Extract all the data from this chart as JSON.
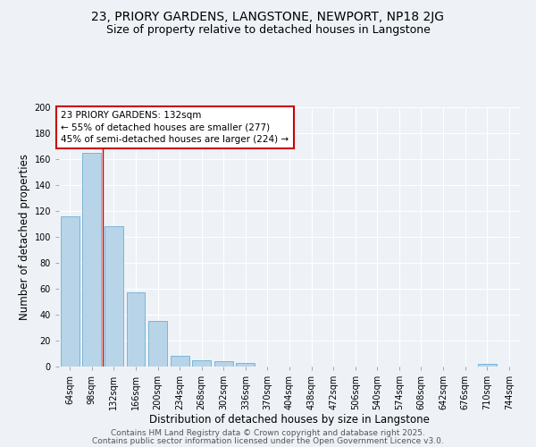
{
  "title_line1": "23, PRIORY GARDENS, LANGSTONE, NEWPORT, NP18 2JG",
  "title_line2": "Size of property relative to detached houses in Langstone",
  "xlabel": "Distribution of detached houses by size in Langstone",
  "ylabel": "Number of detached properties",
  "categories": [
    "64sqm",
    "98sqm",
    "132sqm",
    "166sqm",
    "200sqm",
    "234sqm",
    "268sqm",
    "302sqm",
    "336sqm",
    "370sqm",
    "404sqm",
    "438sqm",
    "472sqm",
    "506sqm",
    "540sqm",
    "574sqm",
    "608sqm",
    "642sqm",
    "676sqm",
    "710sqm",
    "744sqm"
  ],
  "values": [
    116,
    165,
    108,
    57,
    35,
    8,
    5,
    4,
    3,
    0,
    0,
    0,
    0,
    0,
    0,
    0,
    0,
    0,
    0,
    2,
    0
  ],
  "bar_color": "#b8d4e8",
  "bar_edge_color": "#6aaed6",
  "highlight_bar_index": 2,
  "highlight_color": "#cc0000",
  "annotation_text": "23 PRIORY GARDENS: 132sqm\n← 55% of detached houses are smaller (277)\n45% of semi-detached houses are larger (224) →",
  "annotation_box_color": "#ffffff",
  "annotation_box_edge_color": "#cc0000",
  "ylim": [
    0,
    200
  ],
  "yticks": [
    0,
    20,
    40,
    60,
    80,
    100,
    120,
    140,
    160,
    180,
    200
  ],
  "background_color": "#eef2f7",
  "grid_color": "#ffffff",
  "footer_line1": "Contains HM Land Registry data © Crown copyright and database right 2025.",
  "footer_line2": "Contains public sector information licensed under the Open Government Licence v3.0.",
  "title_fontsize": 10,
  "subtitle_fontsize": 9,
  "axis_label_fontsize": 8.5,
  "tick_fontsize": 7,
  "annotation_fontsize": 7.5,
  "footer_fontsize": 6.5
}
